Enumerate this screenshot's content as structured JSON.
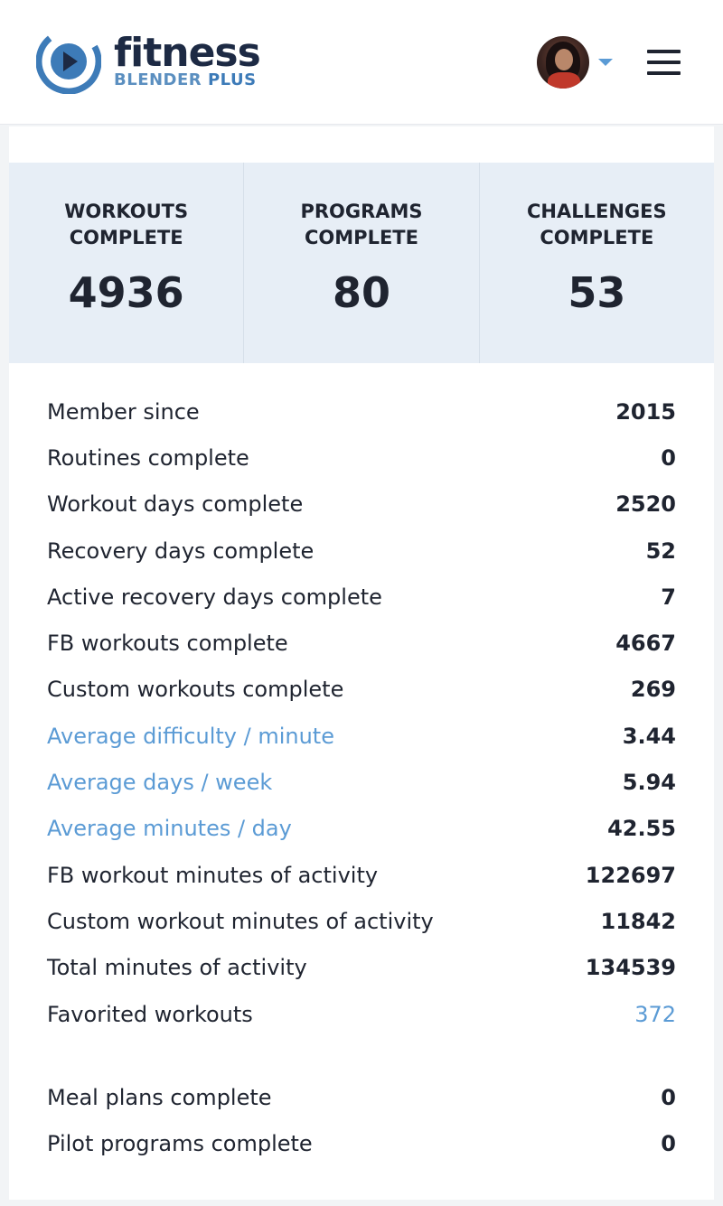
{
  "brand": {
    "word": "fitness",
    "sub": "BLENDER",
    "plus": "PLUS",
    "accent": "#3d7bb8"
  },
  "summary": [
    {
      "label_1": "WORKOUTS",
      "label_2": "COMPLETE",
      "value": "4936"
    },
    {
      "label_1": "PROGRAMS",
      "label_2": "COMPLETE",
      "value": "80"
    },
    {
      "label_1": "CHALLENGES",
      "label_2": "COMPLETE",
      "value": "53"
    }
  ],
  "stats": [
    {
      "label": "Member since",
      "value": "2015"
    },
    {
      "label": "Routines complete",
      "value": "0"
    },
    {
      "label": "Workout days complete",
      "value": "2520"
    },
    {
      "label": "Recovery days complete",
      "value": "52"
    },
    {
      "label": "Active recovery days complete",
      "value": "7"
    },
    {
      "label": "FB workouts complete",
      "value": "4667"
    },
    {
      "label": "Custom workouts complete",
      "value": "269"
    },
    {
      "label": "Average difficulty / minute",
      "value": "3.44"
    },
    {
      "label": "Average days / week",
      "value": "5.94"
    },
    {
      "label": "Average minutes / day",
      "value": "42.55"
    },
    {
      "label": "FB workout minutes of activity",
      "value": "122697"
    },
    {
      "label": "Custom workout minutes of activity",
      "value": "11842"
    },
    {
      "label": "Total minutes of activity",
      "value": "134539"
    },
    {
      "label": "Favorited workouts",
      "value": "372"
    }
  ],
  "extra_stats": [
    {
      "label": "Meal plans complete",
      "value": "0"
    },
    {
      "label": "Pilot programs complete",
      "value": "0"
    }
  ],
  "colors": {
    "link": "#5b9bd5",
    "summary_bg": "#e7eef6",
    "text": "#1f2430"
  }
}
